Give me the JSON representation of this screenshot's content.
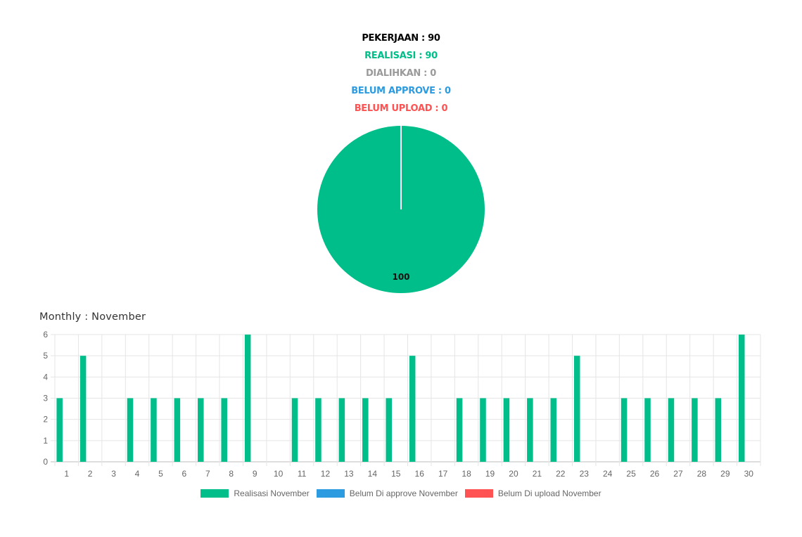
{
  "summary": {
    "pekerjaan": "PEKERJAAN : 90",
    "realisasi": "REALISASI : 90",
    "dialihkan": "DIALIHKAN : 0",
    "belum_approve": "BELUM APPROVE : 0",
    "belum_upload": "BELUM UPLOAD : 0"
  },
  "colors": {
    "pekerjaan": "#000000",
    "realisasi": "#00be8a",
    "dialihkan": "#9a9a9a",
    "belum_approve": "#2d9be0",
    "belum_upload": "#ff5252",
    "grid": "#e5e5e5",
    "axis_text": "#666666"
  },
  "monthly_title": "Monthly : November",
  "legend": [
    {
      "label": "Realisasi November",
      "color": "#00be8a"
    },
    {
      "label": "Belum Di approve November",
      "color": "#2d9be0"
    },
    {
      "label": "Belum Di upload November",
      "color": "#ff5252"
    }
  ],
  "chart_data": [
    {
      "type": "pie",
      "labels": [
        "Realisasi"
      ],
      "values": [
        100
      ],
      "data_labels": [
        "100"
      ],
      "colors": [
        "#00be8a"
      ]
    },
    {
      "type": "bar",
      "title": "Monthly : November",
      "categories": [
        "1",
        "2",
        "3",
        "4",
        "5",
        "6",
        "7",
        "8",
        "9",
        "10",
        "11",
        "12",
        "13",
        "14",
        "15",
        "16",
        "17",
        "18",
        "19",
        "20",
        "21",
        "22",
        "23",
        "24",
        "25",
        "26",
        "27",
        "28",
        "29",
        "30"
      ],
      "series": [
        {
          "name": "Realisasi November",
          "color": "#00be8a",
          "values": [
            3,
            5,
            0,
            3,
            3,
            3,
            3,
            3,
            6,
            0,
            3,
            3,
            3,
            3,
            3,
            5,
            0,
            3,
            3,
            3,
            3,
            3,
            5,
            0,
            3,
            3,
            3,
            3,
            3,
            6
          ]
        },
        {
          "name": "Belum Di approve November",
          "color": "#2d9be0",
          "values": [
            0,
            0,
            0,
            0,
            0,
            0,
            0,
            0,
            0,
            0,
            0,
            0,
            0,
            0,
            0,
            0,
            0,
            0,
            0,
            0,
            0,
            0,
            0,
            0,
            0,
            0,
            0,
            0,
            0,
            0
          ]
        },
        {
          "name": "Belum Di upload November",
          "color": "#ff5252",
          "values": [
            0,
            0,
            0,
            0,
            0,
            0,
            0,
            0,
            0,
            0,
            0,
            0,
            0,
            0,
            0,
            0,
            0,
            0,
            0,
            0,
            0,
            0,
            0,
            0,
            0,
            0,
            0,
            0,
            0,
            0
          ]
        }
      ],
      "ylim": [
        0,
        6
      ],
      "yticks": [
        "0",
        "1",
        "2",
        "3",
        "4",
        "5",
        "6"
      ],
      "grid": true,
      "legend_position": "bottom"
    }
  ]
}
